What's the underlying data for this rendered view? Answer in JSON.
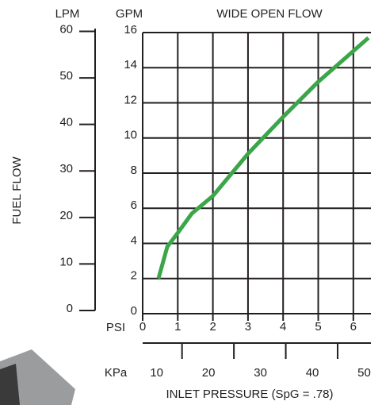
{
  "chart_data": {
    "type": "line",
    "title": "WIDE OPEN FLOW",
    "y_label_left": "LPM",
    "y_label": "GPM",
    "side_label": "FUEL FLOW",
    "x_label": "PSI",
    "x2_label": "KPa",
    "x_title": "INLET PRESSURE (SpG = .78)",
    "x": [
      0.45,
      0.7,
      1.0,
      1.4,
      2.0,
      3.0,
      4.0,
      5.0,
      6.43
    ],
    "series": [
      {
        "name": "Wide open flow",
        "color": "#3aa648",
        "values": [
          2.0,
          3.8,
          4.6,
          5.7,
          6.7,
          9.1,
          11.2,
          13.2,
          15.7
        ]
      }
    ],
    "xlim": [
      0,
      6.5
    ],
    "xticks": [
      0,
      1,
      2,
      3,
      4,
      5,
      6
    ],
    "ylim": [
      0,
      16
    ],
    "yticks": [
      0,
      2,
      4,
      6,
      8,
      10,
      12,
      14,
      16
    ],
    "y2lim": [
      0,
      60.6
    ],
    "y2ticks": [
      0,
      10,
      20,
      30,
      40,
      50,
      60
    ],
    "x2lim": [
      7.3,
      51.3
    ],
    "x2ticks": [
      10,
      20,
      30,
      40,
      50
    ],
    "grid": true
  }
}
